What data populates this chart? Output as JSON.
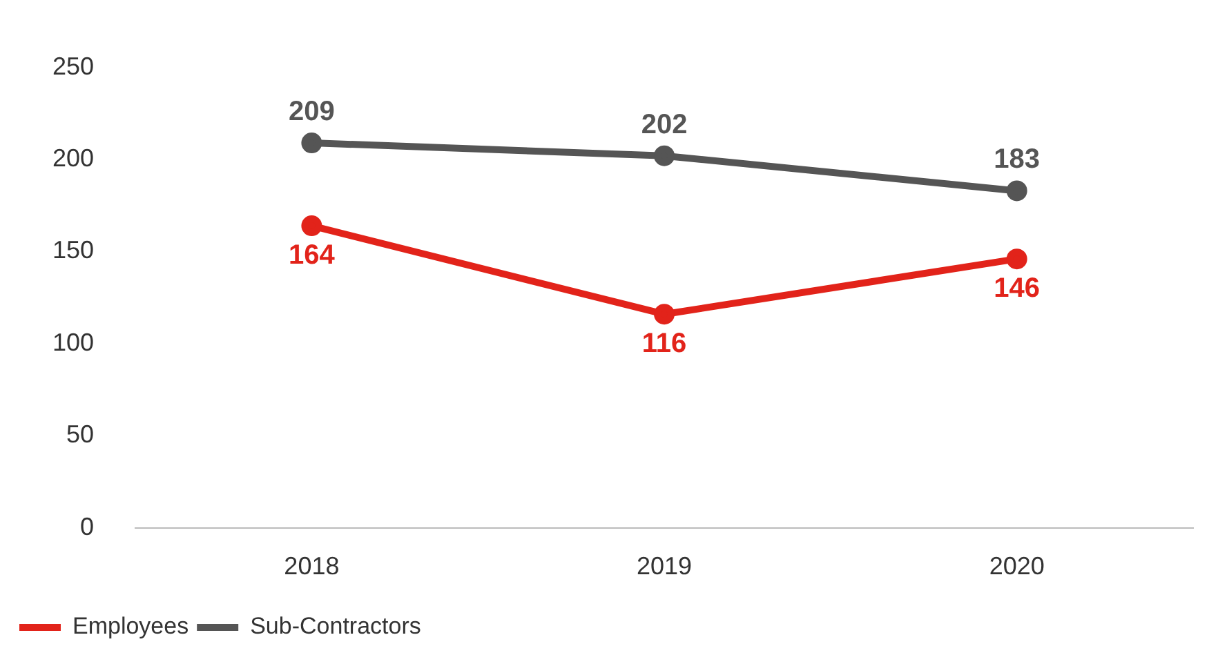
{
  "chart_data": {
    "type": "line",
    "categories": [
      "2018",
      "2019",
      "2020"
    ],
    "series": [
      {
        "name": "Employees",
        "color": "#e2231a",
        "values": [
          164,
          116,
          146
        ]
      },
      {
        "name": "Sub-Contractors",
        "color": "#555555",
        "values": [
          209,
          202,
          183
        ]
      }
    ],
    "ylim": [
      0,
      250
    ],
    "yticks": [
      0,
      50,
      100,
      150,
      200,
      250
    ],
    "grid": false,
    "legend": "bottom left",
    "marker": "circle",
    "line_style": "solid",
    "data_labels": true
  }
}
